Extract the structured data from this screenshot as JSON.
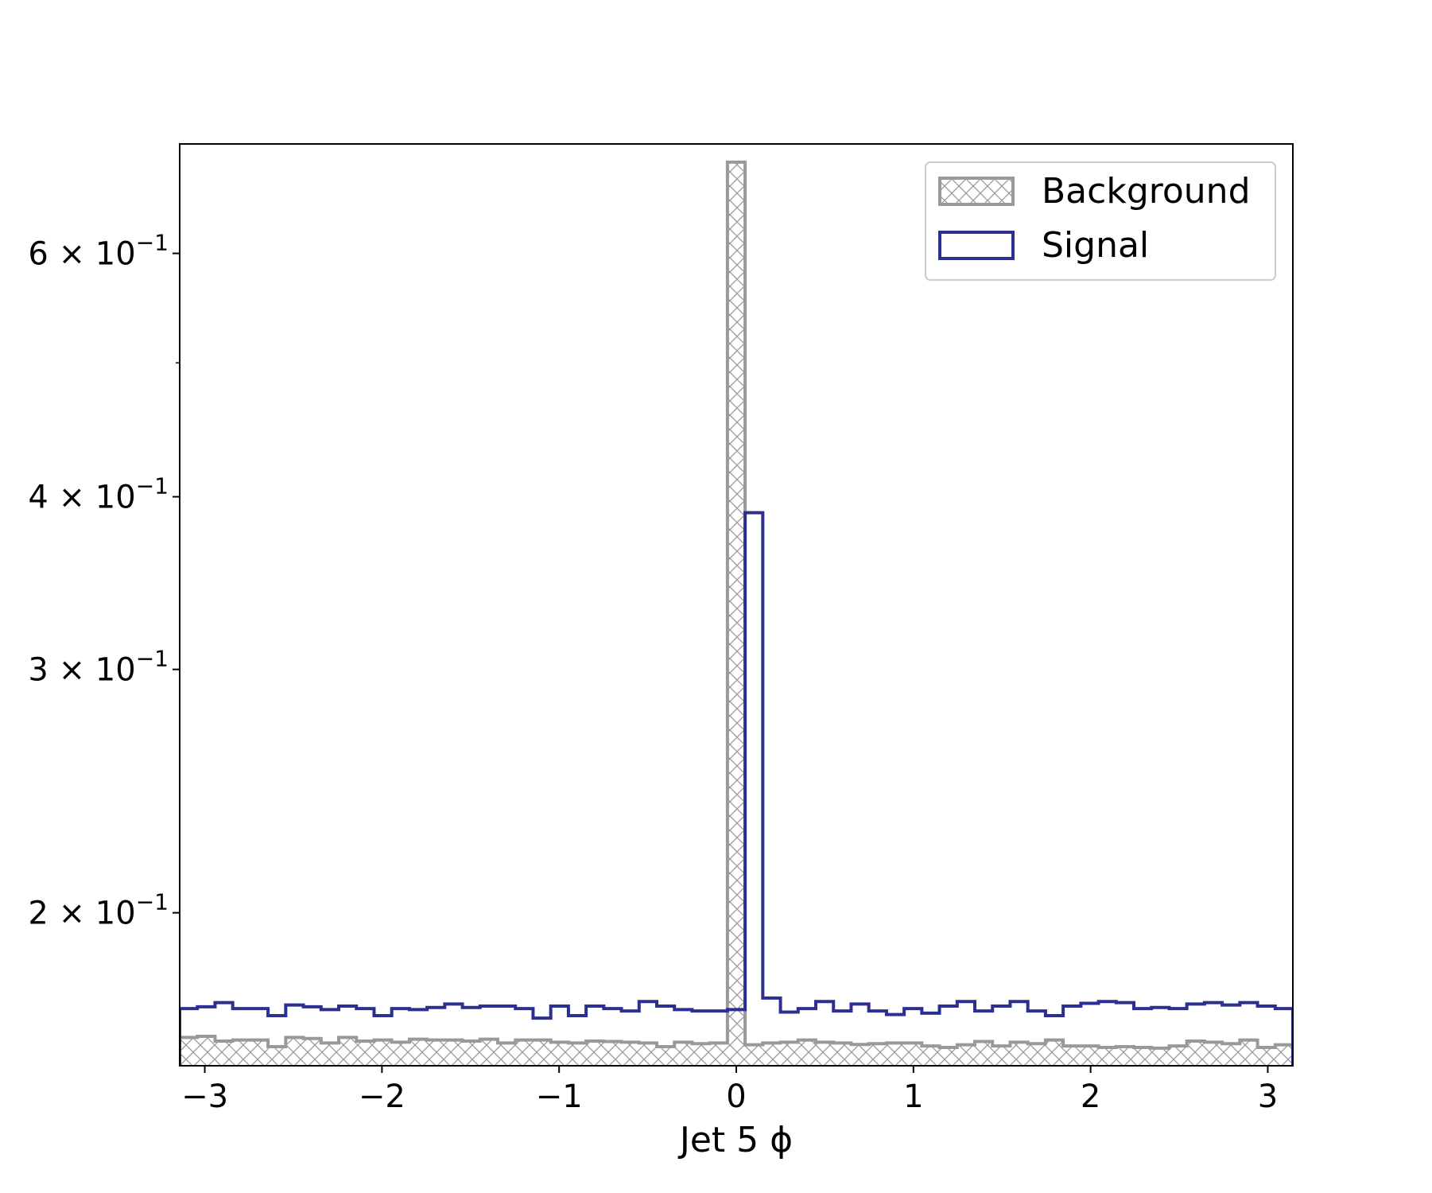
{
  "chart_data": {
    "type": "histogram",
    "xlabel": "Jet 5 ϕ",
    "ylabel": "",
    "xlim": [
      -3.1416,
      3.1416
    ],
    "ylim": [
      0.155,
      0.72
    ],
    "yscale": "log",
    "grid": false,
    "legend_position": "top-right",
    "x_ticks": [
      {
        "value": -3,
        "label": "−3"
      },
      {
        "value": -2,
        "label": "−2"
      },
      {
        "value": -1,
        "label": "−1"
      },
      {
        "value": 0,
        "label": "0"
      },
      {
        "value": 1,
        "label": "1"
      },
      {
        "value": 2,
        "label": "2"
      },
      {
        "value": 3,
        "label": "3"
      }
    ],
    "y_ticks": [
      {
        "value": 0.2,
        "mantissa": "2",
        "times": "×",
        "base": "10",
        "exp": "−1"
      },
      {
        "value": 0.3,
        "mantissa": "3",
        "times": "×",
        "base": "10",
        "exp": "−1"
      },
      {
        "value": 0.4,
        "mantissa": "4",
        "times": "×",
        "base": "10",
        "exp": "−1"
      },
      {
        "value": 0.6,
        "mantissa": "6",
        "times": "×",
        "base": "10",
        "exp": "−1"
      }
    ],
    "y_minor_ticks": [
      0.5
    ],
    "bins": {
      "min": -3.1416,
      "max": 3.1416,
      "count": 63
    },
    "series": [
      {
        "name": "Background",
        "style": "hatched",
        "color": "#999999",
        "values": [
          0.1625,
          0.1628,
          0.1615,
          0.1618,
          0.1618,
          0.16,
          0.1625,
          0.1622,
          0.161,
          0.1625,
          0.1615,
          0.1618,
          0.1612,
          0.162,
          0.1618,
          0.1618,
          0.1615,
          0.162,
          0.161,
          0.1618,
          0.1618,
          0.1612,
          0.161,
          0.1615,
          0.1614,
          0.1612,
          0.161,
          0.16,
          0.1612,
          0.1608,
          0.161,
          0.6985,
          0.1605,
          0.161,
          0.1612,
          0.1618,
          0.1612,
          0.161,
          0.1606,
          0.1608,
          0.161,
          0.161,
          0.1602,
          0.1598,
          0.1605,
          0.1614,
          0.1602,
          0.1612,
          0.1608,
          0.1618,
          0.1602,
          0.1602,
          0.1598,
          0.16,
          0.1598,
          0.1596,
          0.1602,
          0.1615,
          0.1612,
          0.1608,
          0.1618,
          0.1598,
          0.1605
        ]
      },
      {
        "name": "Signal",
        "style": "step",
        "color": "#2b2f8f",
        "values": [
          0.1705,
          0.171,
          0.1722,
          0.1705,
          0.1705,
          0.1685,
          0.1715,
          0.171,
          0.1702,
          0.1712,
          0.1705,
          0.1685,
          0.1705,
          0.1702,
          0.1708,
          0.1718,
          0.1708,
          0.1712,
          0.1712,
          0.1705,
          0.1678,
          0.1712,
          0.1685,
          0.1712,
          0.1705,
          0.1698,
          0.1725,
          0.1712,
          0.1702,
          0.1698,
          0.1698,
          0.1702,
          0.3895,
          0.1735,
          0.1695,
          0.1705,
          0.1725,
          0.1698,
          0.1718,
          0.1698,
          0.1688,
          0.1705,
          0.1692,
          0.1712,
          0.1725,
          0.1698,
          0.1712,
          0.1725,
          0.1698,
          0.1685,
          0.1712,
          0.172,
          0.1725,
          0.1722,
          0.1705,
          0.1708,
          0.1705,
          0.1718,
          0.1722,
          0.1715,
          0.1722,
          0.1712,
          0.1705
        ]
      }
    ]
  }
}
